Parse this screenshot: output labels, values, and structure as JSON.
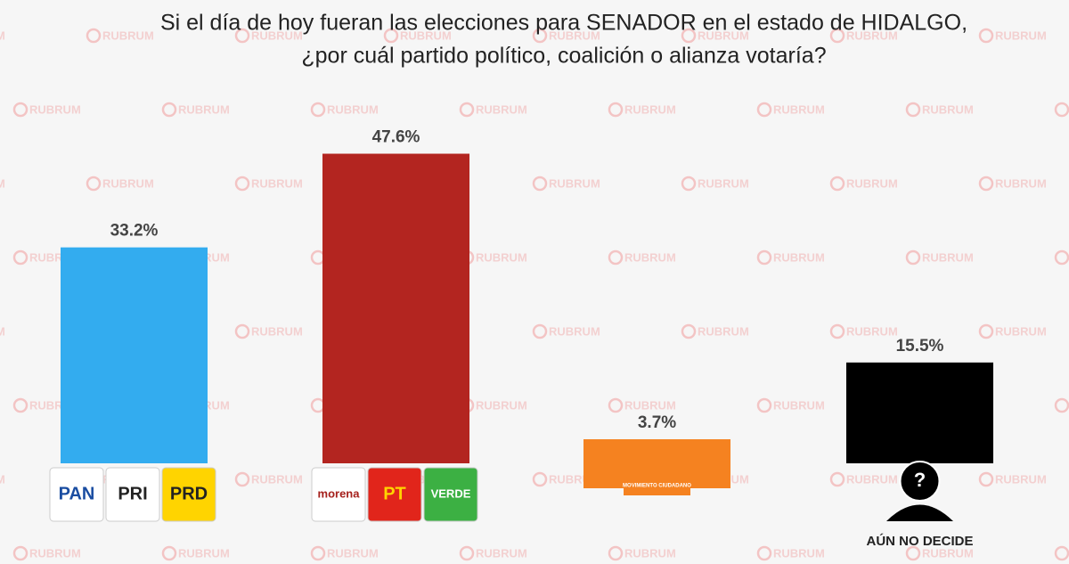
{
  "chart_data": {
    "type": "bar",
    "title": [
      "Si el día de hoy fueran las elecciones para SENADOR en el estado de HIDALGO,",
      "¿por cuál partido político, coalición o alianza votaría?"
    ],
    "categories": [
      null,
      null,
      null,
      "AÚN NO DECIDE"
    ],
    "logos": [
      [
        "PAN",
        "PRI",
        "PRD"
      ],
      [
        "morena",
        "PT",
        "VERDE"
      ],
      [
        "MOVIMIENTO CIUDADANO"
      ],
      [
        "?"
      ]
    ],
    "values": [
      33.2,
      47.6,
      3.7,
      15.5
    ],
    "value_labels": [
      "33.2%",
      "47.6%",
      "3.7%",
      "15.5%"
    ],
    "colors": [
      "#33acef",
      "#b32520",
      "#f58220",
      "#000000"
    ],
    "watermark": "RUBRUM"
  }
}
